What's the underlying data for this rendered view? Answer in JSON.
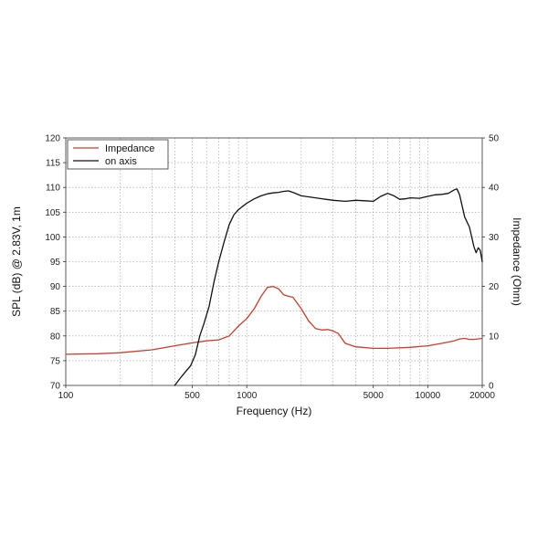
{
  "chart_data": {
    "type": "line",
    "title": "",
    "xlabel": "Frequency (Hz)",
    "ylabel": "SPL (dB) @ 2.83V, 1m",
    "y2label": "Impedance (Ohm)",
    "xscale": "log",
    "xlim": [
      100,
      20000
    ],
    "ylim": [
      70,
      120
    ],
    "y2lim": [
      0,
      50
    ],
    "grid": true,
    "legend_position": "top-left",
    "x_ticks": [
      100,
      500,
      1000,
      5000,
      10000,
      20000
    ],
    "x_tick_labels": [
      "100",
      "500",
      "1000",
      "5000",
      "10000",
      "20000"
    ],
    "y_ticks": [
      70,
      75,
      80,
      85,
      90,
      95,
      100,
      105,
      110,
      115,
      120
    ],
    "y2_ticks": [
      0,
      10,
      20,
      30,
      40,
      50
    ],
    "series": [
      {
        "name": "Impedance",
        "axis": "right",
        "color": "#d23a2a",
        "x": [
          100,
          150,
          200,
          300,
          400,
          500,
          600,
          700,
          800,
          900,
          1000,
          1100,
          1200,
          1300,
          1400,
          1500,
          1600,
          1700,
          1800,
          2000,
          2200,
          2400,
          2600,
          2800,
          3000,
          3200,
          3500,
          4000,
          5000,
          6000,
          8000,
          10000,
          12000,
          14000,
          15000,
          16000,
          17000,
          18000,
          20000
        ],
        "y": [
          6.3,
          6.4,
          6.6,
          7.2,
          8.0,
          8.6,
          9.0,
          9.2,
          10.0,
          12.0,
          13.5,
          15.5,
          18.0,
          19.8,
          20.0,
          19.5,
          18.3,
          18.0,
          17.8,
          15.5,
          13.0,
          11.5,
          11.2,
          11.3,
          11.0,
          10.5,
          8.5,
          7.8,
          7.5,
          7.5,
          7.7,
          8.0,
          8.5,
          9.0,
          9.4,
          9.5,
          9.3,
          9.3,
          9.5
        ]
      },
      {
        "name": "on axis",
        "axis": "left",
        "color": "#111111",
        "x": [
          400,
          430,
          460,
          490,
          520,
          550,
          580,
          620,
          660,
          700,
          750,
          800,
          850,
          900,
          950,
          1000,
          1100,
          1200,
          1300,
          1400,
          1500,
          1600,
          1700,
          1800,
          2000,
          2500,
          3000,
          3500,
          4000,
          4500,
          5000,
          5500,
          6000,
          6500,
          7000,
          7500,
          8000,
          9000,
          10000,
          11000,
          12000,
          13000,
          14000,
          14500,
          15000,
          16000,
          17000,
          18000,
          18500,
          19000,
          19500,
          20000
        ],
        "y": [
          70.0,
          71.5,
          72.8,
          74.0,
          76.2,
          80.0,
          82.5,
          86.0,
          91.0,
          95.0,
          99.0,
          102.5,
          104.5,
          105.5,
          106.2,
          106.8,
          107.7,
          108.3,
          108.7,
          108.9,
          109.0,
          109.2,
          109.3,
          109.0,
          108.3,
          107.8,
          107.4,
          107.2,
          107.4,
          107.3,
          107.2,
          108.2,
          108.8,
          108.3,
          107.6,
          107.7,
          107.9,
          107.8,
          108.2,
          108.5,
          108.6,
          108.8,
          109.5,
          109.7,
          108.5,
          104.0,
          102.0,
          98.0,
          96.8,
          97.8,
          97.3,
          95.0
        ]
      }
    ]
  }
}
